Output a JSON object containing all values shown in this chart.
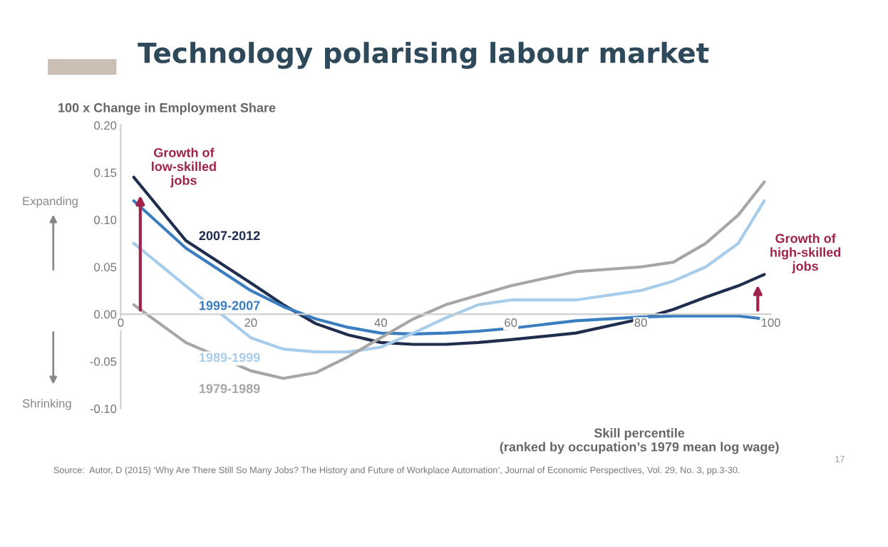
{
  "chart_data": {
    "type": "line",
    "title": "Technology polarising labour market",
    "ylabel": "100 x Change in Employment Share",
    "xlabel": "Skill percentile\n(ranked by occupation’s 1979 mean log wage)",
    "xlim": [
      0,
      100
    ],
    "xticks": [
      0,
      20,
      40,
      60,
      80,
      100
    ],
    "ylim": [
      -0.1,
      0.2
    ],
    "yticks": [
      {
        "value": -0.1,
        "label": "-0.10"
      },
      {
        "value": -0.05,
        "label": "-0.05"
      },
      {
        "value": 0,
        "label": "0.00"
      },
      {
        "value": 0.05,
        "label": "0.05"
      },
      {
        "value": 0.1,
        "label": "0.10"
      },
      {
        "value": 0.15,
        "label": "0.15"
      },
      {
        "value": 0.2,
        "label": "0.20"
      }
    ],
    "grid": false,
    "legend": false,
    "marker": "none",
    "line_style": "solid",
    "x": [
      2,
      10,
      20,
      25,
      30,
      35,
      40,
      45,
      50,
      55,
      60,
      70,
      80,
      85,
      90,
      95,
      99
    ],
    "series": [
      {
        "name": "2007-2012",
        "color": "#1f2d4e",
        "values": [
          0.145,
          0.078,
          0.033,
          0.01,
          -0.01,
          -0.022,
          -0.03,
          -0.032,
          -0.032,
          -0.03,
          -0.027,
          -0.02,
          -0.005,
          0.005,
          0.018,
          0.03,
          0.042
        ]
      },
      {
        "name": "1999-2007",
        "color": "#3a7dc0",
        "values": [
          0.12,
          0.07,
          0.025,
          0.008,
          -0.005,
          -0.014,
          -0.02,
          -0.021,
          -0.02,
          -0.018,
          -0.015,
          -0.007,
          -0.003,
          -0.002,
          -0.002,
          -0.002,
          -0.005
        ]
      },
      {
        "name": "1989-1999",
        "color": "#a8cdea",
        "values": [
          0.075,
          0.03,
          -0.025,
          -0.037,
          -0.04,
          -0.04,
          -0.035,
          -0.02,
          -0.004,
          0.01,
          0.015,
          0.015,
          0.025,
          0.035,
          0.05,
          0.075,
          0.12
        ]
      },
      {
        "name": "1979-1989",
        "color": "#a6a6a6",
        "values": [
          0.01,
          -0.03,
          -0.06,
          -0.068,
          -0.062,
          -0.045,
          -0.025,
          -0.005,
          0.01,
          0.02,
          0.03,
          0.045,
          0.05,
          0.055,
          0.075,
          0.105,
          0.14
        ]
      }
    ],
    "annotations": [
      {
        "text": "Growth of\nlow-skilled\njobs",
        "x": 3,
        "y": 0.13
      },
      {
        "text": "Growth of\nhigh-skilled\njobs",
        "x": 98,
        "y": 0.035
      },
      "Expanding",
      "Shrinking",
      "Source:  Autor, D (2015) ‘Why Are There Still So Many Jobs? The History and Future of Workplace Automation’, Journal of Economic Perspectives, Vol. 29, No. 3, pp.3-30.",
      "17"
    ]
  }
}
